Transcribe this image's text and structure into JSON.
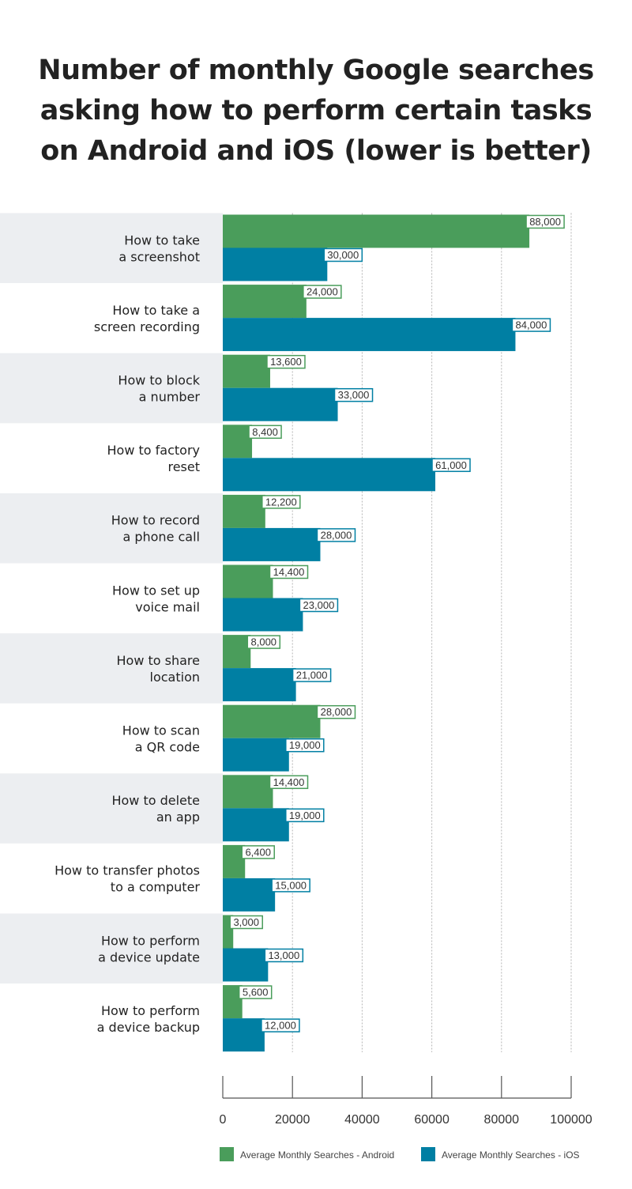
{
  "title": {
    "line1": "Number of monthly Google searches",
    "line2": "asking how to perform certain tasks",
    "line3": "on Android and iOS (lower is better)"
  },
  "colors": {
    "android": "#4a9d5b",
    "ios": "#007fa3",
    "band": "#eceef1",
    "grid": "#b5b5b5",
    "axis": "#555555"
  },
  "chart_data": {
    "type": "bar",
    "orientation": "horizontal",
    "title": "Number of monthly Google searches asking how to perform certain tasks on Android and iOS (lower is better)",
    "categories": [
      [
        "How to take",
        "a screenshot"
      ],
      [
        "How to take a",
        "screen recording"
      ],
      [
        "How to block",
        "a number"
      ],
      [
        "How to factory",
        "reset"
      ],
      [
        "How to record",
        "a phone call"
      ],
      [
        "How to set up",
        "voice mail"
      ],
      [
        "How to share",
        "location"
      ],
      [
        "How to scan",
        "a QR code"
      ],
      [
        "How to delete",
        "an app"
      ],
      [
        "How to transfer photos",
        "to a computer"
      ],
      [
        "How to perform",
        "a device update"
      ],
      [
        "How to perform",
        "a device backup"
      ]
    ],
    "series": [
      {
        "name": "Average Monthly Searches - Android",
        "values": [
          88000,
          24000,
          13600,
          8400,
          12200,
          14400,
          8000,
          28000,
          14400,
          6400,
          3000,
          5600
        ],
        "labels": [
          "88,000",
          "24,000",
          "13,600",
          "8,400",
          "12,200",
          "14,400",
          "8,000",
          "28,000",
          "14,400",
          "6,400",
          "3,000",
          "5,600"
        ]
      },
      {
        "name": "Average Monthly Searches - iOS",
        "values": [
          30000,
          84000,
          33000,
          61000,
          28000,
          23000,
          21000,
          19000,
          19000,
          15000,
          13000,
          12000
        ],
        "labels": [
          "30,000",
          "84,000",
          "33,000",
          "61,000",
          "28,000",
          "23,000",
          "21,000",
          "19,000",
          "19,000",
          "15,000",
          "13,000",
          "12,000"
        ]
      }
    ],
    "xlim": [
      0,
      100000
    ],
    "xticks": [
      0,
      20000,
      40000,
      60000,
      80000,
      100000
    ],
    "xtick_labels": [
      "0",
      "20000",
      "40000",
      "60000",
      "80000",
      "100000"
    ],
    "grid": true,
    "legend_position": "bottom"
  }
}
